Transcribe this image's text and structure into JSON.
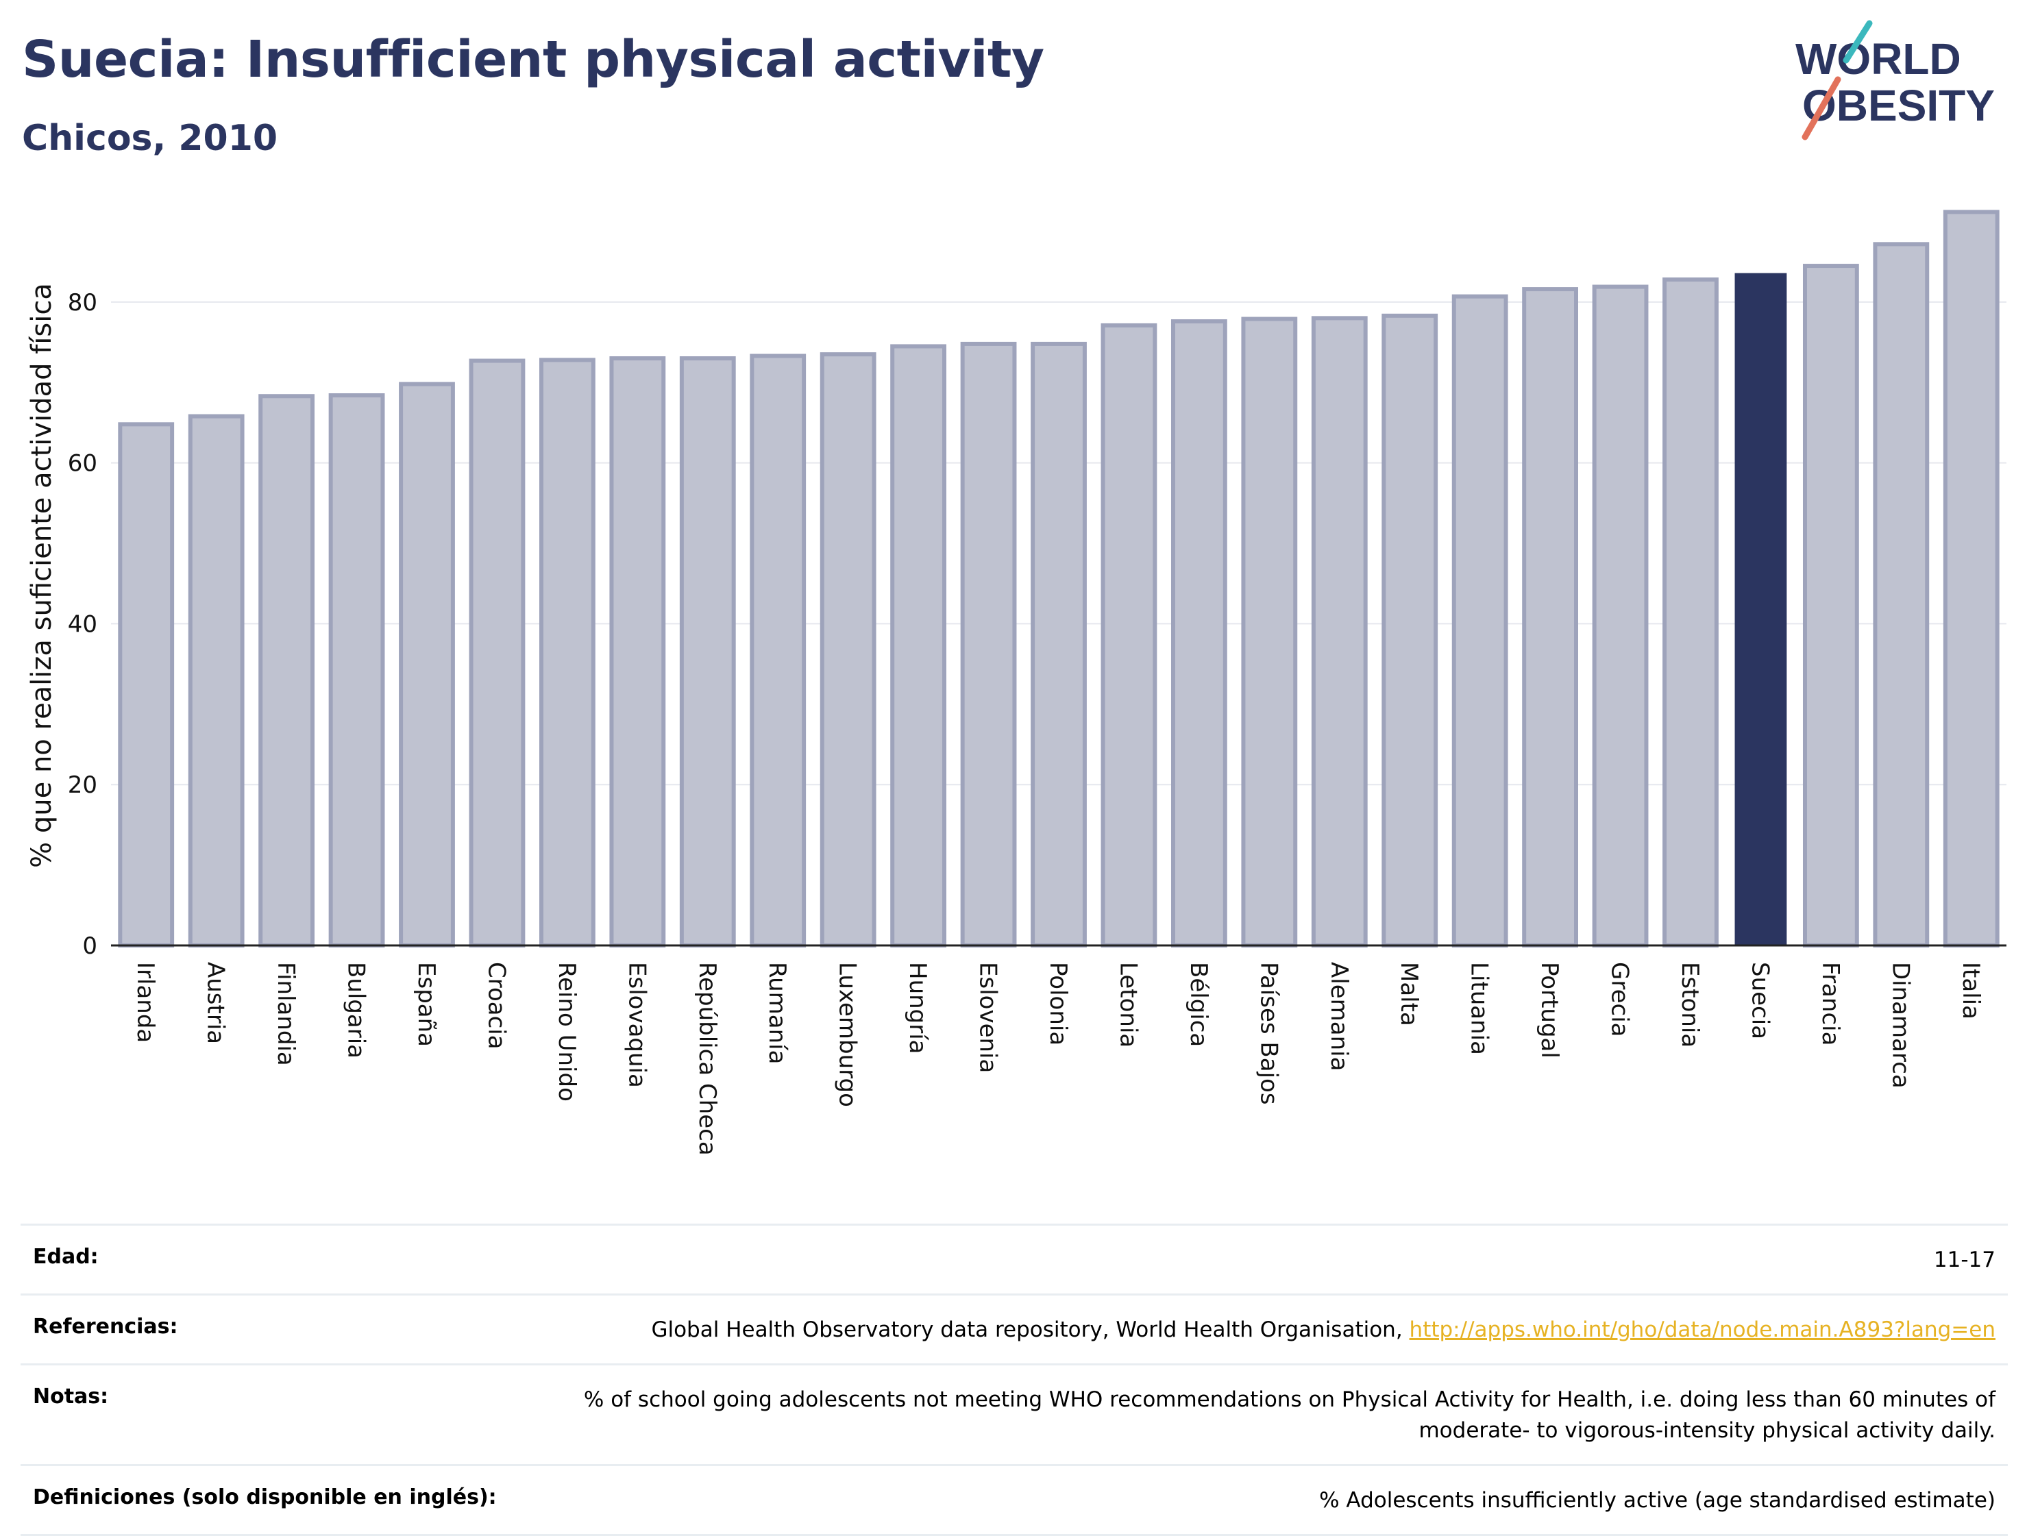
{
  "header": {
    "title": "Suecia: Insufficient physical activity",
    "subtitle": "Chicos, 2010"
  },
  "logo": {
    "line1": "WORLD",
    "line2": "OBESITY",
    "colors": {
      "navy": "#2b3560",
      "teal": "#3bb8bd",
      "coral": "#e2725b"
    }
  },
  "colors": {
    "bar_default_fill": "#bfc2d0",
    "bar_default_stroke": "#9ea3bb",
    "bar_highlight": "#2b3560",
    "gridline": "#e6e8ee",
    "axis": "#222222"
  },
  "chart_data": {
    "type": "bar",
    "title": "Suecia: Insufficient physical activity",
    "subtitle": "Chicos, 2010",
    "xlabel": "",
    "ylabel": "% que no realiza suficiente actividad física",
    "ylim": [
      0,
      92
    ],
    "yticks": [
      0,
      20,
      40,
      60,
      80
    ],
    "grid": true,
    "highlight": "Suecia",
    "categories": [
      "Irlanda",
      "Austria",
      "Finlandia",
      "Bulgaria",
      "España",
      "Croacia",
      "Reino Unido",
      "Eslovaquia",
      "República Checa",
      "Rumanía",
      "Luxemburgo",
      "Hungría",
      "Eslovenia",
      "Polonia",
      "Letonia",
      "Bélgica",
      "Países Bajos",
      "Alemania",
      "Malta",
      "Lituania",
      "Portugal",
      "Grecia",
      "Estonia",
      "Suecia",
      "Francia",
      "Dinamarca",
      "Italia"
    ],
    "values": [
      64.8,
      65.8,
      68.3,
      68.4,
      69.8,
      72.7,
      72.8,
      73.0,
      73.0,
      73.3,
      73.5,
      74.5,
      74.8,
      74.8,
      77.1,
      77.6,
      77.9,
      78.0,
      78.3,
      80.7,
      81.6,
      81.9,
      82.8,
      83.6,
      84.5,
      87.2,
      91.2
    ]
  },
  "info_table": {
    "rows": [
      {
        "label": "Edad:",
        "value": "11-17"
      },
      {
        "label": "Referencias:",
        "value": "Global Health Observatory data repository, World Health Organisation, ",
        "link": "http://apps.who.int/gho/data/node.main.A893?lang=en"
      },
      {
        "label": "Notas:",
        "value": "% of school going adolescents not meeting WHO recommendations on Physical Activity for Health, i.e. doing less than 60 minutes of moderate- to vigorous-intensity physical activity daily."
      },
      {
        "label": "Definiciones (solo disponible en inglés):",
        "value": "% Adolescents insufficiently active (age standardised estimate)"
      }
    ]
  }
}
